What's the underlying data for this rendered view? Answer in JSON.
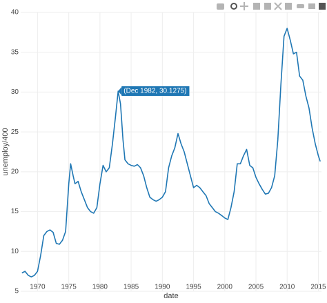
{
  "chart_data": {
    "type": "line",
    "x_label": "date",
    "y_label": "unemploy/400",
    "hover_label": "(Dec 1982, 30.1275)",
    "hover_point": [
      1982.92,
      30.1275
    ],
    "color": "#1f77b4",
    "grid": true,
    "xlim": [
      1967.3,
      2015.5
    ],
    "ylim": [
      5,
      40
    ],
    "xticks": [
      1970,
      1975,
      1980,
      1985,
      1990,
      1995,
      2000,
      2005,
      2010,
      2015
    ],
    "yticks": [
      5,
      10,
      15,
      20,
      25,
      30,
      35,
      40
    ],
    "x": [
      1967.5,
      1968,
      1968.5,
      1969,
      1969.5,
      1970,
      1970.5,
      1971,
      1971.5,
      1972,
      1972.5,
      1973,
      1973.5,
      1974,
      1974.5,
      1975,
      1975.3,
      1975.7,
      1976,
      1976.5,
      1977,
      1977.5,
      1978,
      1978.5,
      1979,
      1979.5,
      1980,
      1980.5,
      1981,
      1981.5,
      1982,
      1982.5,
      1982.92,
      1983.3,
      1983.7,
      1984,
      1984.5,
      1985,
      1985.5,
      1986,
      1986.5,
      1987,
      1987.5,
      1988,
      1988.5,
      1989,
      1989.5,
      1990,
      1990.5,
      1991,
      1991.5,
      1992,
      1992.5,
      1993,
      1993.5,
      1994,
      1994.5,
      1995,
      1995.5,
      1996,
      1996.5,
      1997,
      1997.5,
      1998,
      1998.5,
      1999,
      1999.5,
      2000,
      2000.5,
      2001,
      2001.5,
      2002,
      2002.5,
      2003,
      2003.5,
      2004,
      2004.5,
      2005,
      2005.5,
      2006,
      2006.5,
      2007,
      2007.5,
      2008,
      2008.5,
      2009,
      2009.5,
      2010,
      2010.5,
      2011,
      2011.5,
      2012,
      2012.5,
      2013,
      2013.5,
      2014,
      2014.5,
      2015,
      2015.3
    ],
    "values": [
      7.3,
      7.5,
      7.0,
      6.8,
      7.0,
      7.5,
      9.5,
      12.0,
      12.5,
      12.7,
      12.4,
      11.0,
      10.9,
      11.4,
      12.5,
      18.5,
      21.0,
      19.5,
      18.5,
      18.8,
      17.5,
      16.5,
      15.5,
      15.0,
      14.8,
      15.5,
      18.5,
      20.8,
      20.0,
      20.5,
      23.5,
      27.0,
      30.1275,
      28.5,
      24.0,
      21.5,
      21.0,
      20.8,
      20.7,
      20.9,
      20.5,
      19.5,
      18.0,
      16.8,
      16.5,
      16.3,
      16.5,
      16.8,
      17.5,
      20.5,
      22.0,
      23.0,
      24.8,
      23.5,
      22.5,
      21.0,
      19.5,
      18.0,
      18.3,
      18.0,
      17.5,
      17.0,
      16.0,
      15.5,
      15.0,
      14.8,
      14.5,
      14.2,
      14.0,
      15.5,
      17.5,
      21.0,
      21.0,
      22.0,
      22.8,
      20.8,
      20.5,
      19.3,
      18.5,
      17.8,
      17.2,
      17.3,
      18.0,
      19.5,
      24.0,
      31.0,
      37.0,
      38.0,
      36.5,
      34.8,
      35.0,
      32.0,
      31.5,
      29.5,
      28.0,
      25.5,
      23.5,
      22.0,
      21.3
    ]
  }
}
